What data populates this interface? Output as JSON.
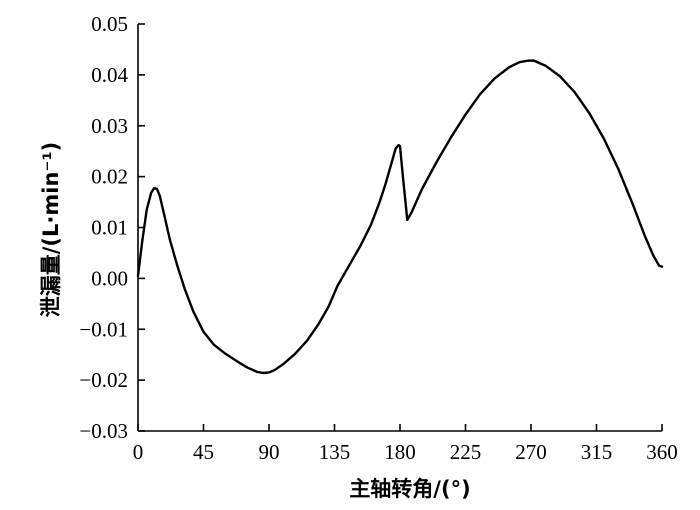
{
  "chart_data": {
    "type": "line",
    "title": "",
    "xlabel": "主轴转角/(°)",
    "ylabel": "泄漏量/(L·min⁻¹)",
    "xlim": [
      0,
      360
    ],
    "ylim": [
      -0.03,
      0.05
    ],
    "grid": false,
    "legend": "none",
    "x_ticks": [
      0,
      45,
      90,
      135,
      180,
      225,
      270,
      315,
      360
    ],
    "x_tick_labels": [
      "0",
      "45",
      "90",
      "135",
      "180",
      "225",
      "270",
      "315",
      "360"
    ],
    "y_ticks": [
      -0.03,
      -0.02,
      -0.01,
      0.0,
      0.01,
      0.02,
      0.03,
      0.04,
      0.05
    ],
    "y_tick_labels": [
      "−0.03",
      "−0.02",
      "−0.01",
      "0.00",
      "0.01",
      "0.02",
      "0.03",
      "0.04",
      "0.05"
    ],
    "series": [
      {
        "color": "#000000",
        "x": [
          0,
          3,
          6,
          9,
          11,
          13,
          15,
          18,
          22,
          27,
          32,
          38,
          45,
          52,
          60,
          68,
          75,
          82,
          86,
          90,
          94,
          100,
          108,
          116,
          124,
          131,
          137,
          145,
          153,
          160,
          166,
          170,
          174,
          177,
          179,
          180,
          182,
          185,
          188,
          195,
          205,
          215,
          225,
          235,
          245,
          255,
          262,
          268,
          272,
          280,
          290,
          300,
          310,
          320,
          330,
          340,
          348,
          354,
          358,
          360
        ],
        "y": [
          0.0005,
          0.0075,
          0.0135,
          0.0168,
          0.0177,
          0.0176,
          0.0162,
          0.0125,
          0.0075,
          0.0025,
          -0.002,
          -0.0065,
          -0.0105,
          -0.013,
          -0.0148,
          -0.0163,
          -0.0175,
          -0.0184,
          -0.0186,
          -0.0185,
          -0.018,
          -0.0168,
          -0.0148,
          -0.0123,
          -0.009,
          -0.0055,
          -0.0015,
          0.0025,
          0.0065,
          0.0105,
          0.015,
          0.0185,
          0.0225,
          0.0255,
          0.0262,
          0.026,
          0.02,
          0.0115,
          0.013,
          0.0175,
          0.0228,
          0.0277,
          0.0322,
          0.0362,
          0.0393,
          0.0415,
          0.0425,
          0.0428,
          0.0428,
          0.0418,
          0.0397,
          0.0366,
          0.0325,
          0.0275,
          0.0215,
          0.0145,
          0.0085,
          0.0045,
          0.0025,
          0.0023
        ]
      }
    ]
  }
}
